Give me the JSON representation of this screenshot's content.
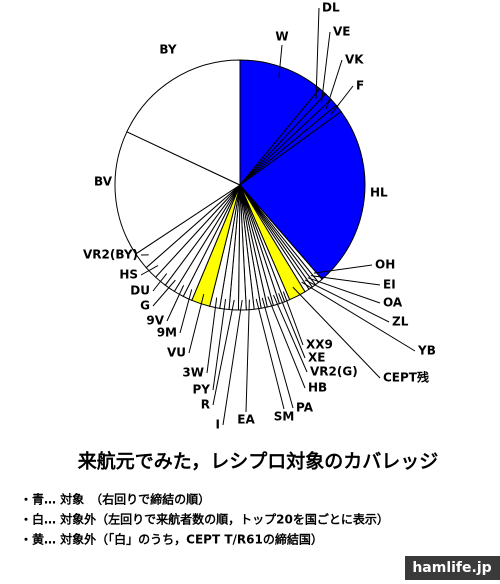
{
  "chart_data": {
    "type": "pie",
    "title": "来航元でみた，レシプロ対象のカバレッジ",
    "annotations": [
      "・青… 対象　（右回りで締結の順）",
      "・白… 対象外（左回りで来航者数の順，トップ20を国ごとに表示）",
      "・黄… 対象外（「白」のうち，CEPT T/R61の締結国）"
    ],
    "categories": [
      "W",
      "DL",
      "VE",
      "VK",
      "F",
      "HL",
      "OH",
      "EI",
      "OA",
      "ZL",
      "YB",
      "CEPT残",
      "XX9",
      "XE",
      "VR2(G)",
      "HB",
      "PA",
      "SM",
      "EA",
      "I",
      "R",
      "PY",
      "3W",
      "VU",
      "9M",
      "9V",
      "G",
      "DU",
      "HS",
      "VR2(BY)",
      "BV",
      "BY"
    ],
    "values": [
      11,
      1,
      1,
      1,
      1,
      23.6,
      0.6,
      0.5,
      0.5,
      0.5,
      0.6,
      2.2,
      0.7,
      0.7,
      0.8,
      0.8,
      0.8,
      0.9,
      1.0,
      1.0,
      1.2,
      1.2,
      1.3,
      2.4,
      1.2,
      1.3,
      1.4,
      1.6,
      1.7,
      2.2,
      16.3,
      18
    ],
    "colors": [
      "#0000ff",
      "#0000ff",
      "#0000ff",
      "#0000ff",
      "#0000ff",
      "#0000ff",
      "#ffffff",
      "#ffffff",
      "#ffffff",
      "#ffffff",
      "#ffffff",
      "#ffff00",
      "#ffffff",
      "#ffffff",
      "#ffffff",
      "#ffffff",
      "#ffffff",
      "#ffffff",
      "#ffffff",
      "#ffffff",
      "#ffffff",
      "#ffffff",
      "#ffffff",
      "#ffff00",
      "#ffffff",
      "#ffffff",
      "#ffffff",
      "#ffffff",
      "#ffffff",
      "#ffffff",
      "#ffffff",
      "#ffffff"
    ]
  },
  "watermark": "hamlife.jp"
}
